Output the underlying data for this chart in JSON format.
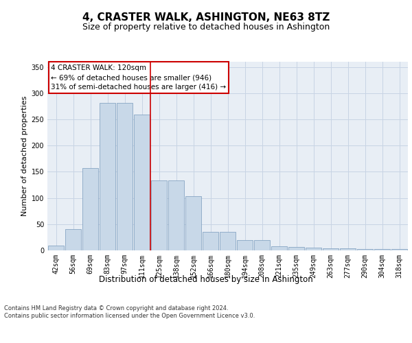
{
  "title": "4, CRASTER WALK, ASHINGTON, NE63 8TZ",
  "subtitle": "Size of property relative to detached houses in Ashington",
  "xlabel": "Distribution of detached houses by size in Ashington",
  "ylabel": "Number of detached properties",
  "categories": [
    "42sqm",
    "56sqm",
    "69sqm",
    "83sqm",
    "97sqm",
    "111sqm",
    "125sqm",
    "138sqm",
    "152sqm",
    "166sqm",
    "180sqm",
    "194sqm",
    "208sqm",
    "221sqm",
    "235sqm",
    "249sqm",
    "263sqm",
    "277sqm",
    "290sqm",
    "304sqm",
    "318sqm"
  ],
  "values": [
    9,
    41,
    157,
    281,
    282,
    259,
    133,
    133,
    103,
    35,
    35,
    20,
    20,
    8,
    6,
    5,
    4,
    4,
    3,
    2,
    3
  ],
  "bar_color": "#c8d8e8",
  "bar_edge_color": "#7799bb",
  "grid_color": "#c8d4e4",
  "bg_color": "#e8eef5",
  "vline_color": "#cc0000",
  "annotation_text": "4 CRASTER WALK: 120sqm\n← 69% of detached houses are smaller (946)\n31% of semi-detached houses are larger (416) →",
  "annotation_box_color": "#ffffff",
  "annotation_box_edge": "#cc0000",
  "ylim": [
    0,
    360
  ],
  "yticks": [
    0,
    50,
    100,
    150,
    200,
    250,
    300,
    350
  ],
  "footer": "Contains HM Land Registry data © Crown copyright and database right 2024.\nContains public sector information licensed under the Open Government Licence v3.0.",
  "title_fontsize": 11,
  "subtitle_fontsize": 9,
  "tick_fontsize": 7,
  "ylabel_fontsize": 8,
  "xlabel_fontsize": 8.5,
  "footer_fontsize": 6,
  "annotation_fontsize": 7.5
}
